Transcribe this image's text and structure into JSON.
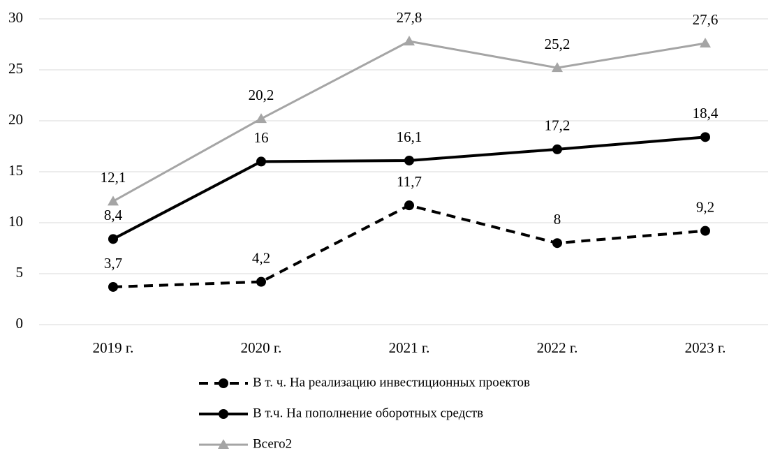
{
  "chart_data": {
    "type": "line",
    "categories": [
      "2019 г.",
      "2020 г.",
      "2021 г.",
      "2022 г.",
      "2023 г."
    ],
    "series": [
      {
        "name": "В т. ч. На реализацию инвестиционных проектов",
        "color": "#000000",
        "dash": true,
        "marker": "circle",
        "values": [
          3.7,
          4.2,
          11.7,
          8,
          9.2
        ],
        "value_labels": [
          "3,7",
          "4,2",
          "11,7",
          "8",
          "9,2"
        ]
      },
      {
        "name": "В т.ч. На пополнение оборотных средств",
        "color": "#000000",
        "dash": false,
        "marker": "circle",
        "values": [
          8.4,
          16,
          16.1,
          17.2,
          18.4
        ],
        "value_labels": [
          "8,4",
          "16",
          "16,1",
          "17,2",
          "18,4"
        ]
      },
      {
        "name": "Всего2",
        "color": "#a5a5a5",
        "dash": false,
        "marker": "triangle",
        "values": [
          12.1,
          20.2,
          27.8,
          25.2,
          27.6
        ],
        "value_labels": [
          "12,1",
          "20,2",
          "27,8",
          "25,2",
          "27,6"
        ]
      }
    ],
    "ylim": [
      0,
      30
    ],
    "yticks": [
      0,
      5,
      10,
      15,
      20,
      25,
      30
    ],
    "grid": true,
    "legend": "bottom"
  }
}
